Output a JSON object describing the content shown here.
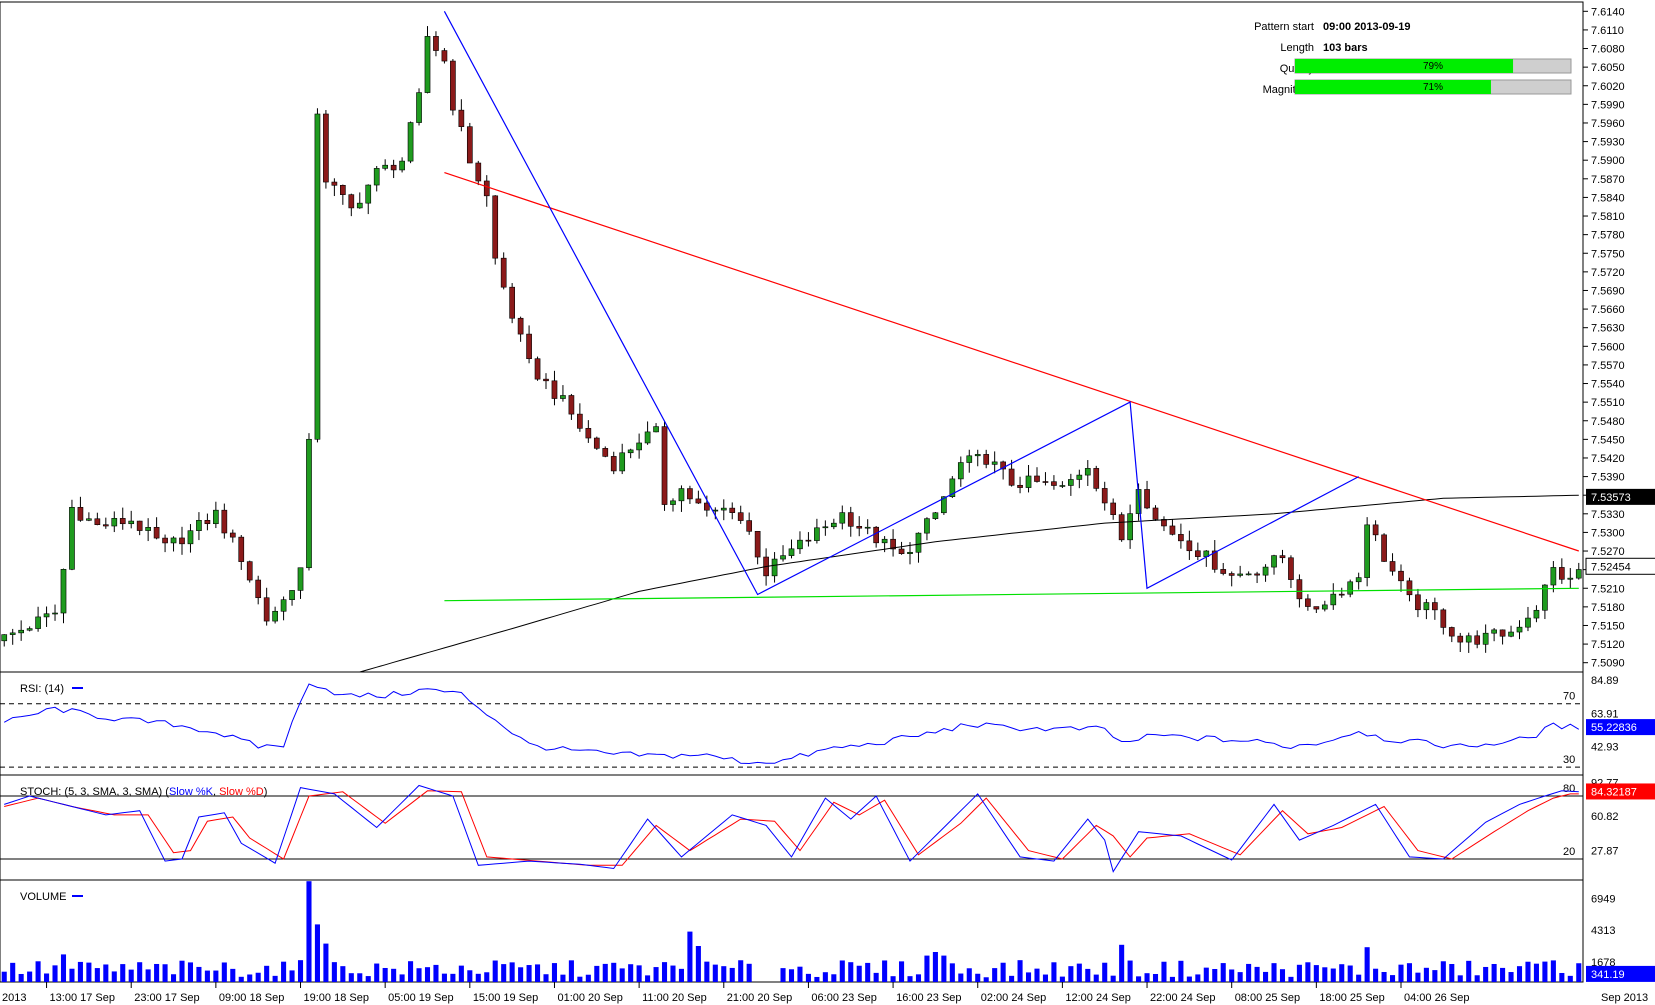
{
  "info": {
    "pattern_start_label": "Pattern start",
    "pattern_start_value": "09:00 2013-09-19",
    "length_label": "Length",
    "length_value": "103 bars",
    "quality_label": "Quality",
    "quality_value": "79%",
    "quality_fraction": 0.79,
    "magnitude_label": "Magnitude",
    "magnitude_value": "71%",
    "magnitude_fraction": 0.71
  },
  "colors": {
    "bull": "#1f9b1f",
    "bear": "#8b1a1a",
    "resistance": "#ff0000",
    "support": "#00e000",
    "pattern": "#0000ff",
    "ma": "#000000",
    "rsi": "#0000ff",
    "stoch_k": "#0000ff",
    "stoch_d": "#ff0000",
    "volume": "#0000ff",
    "bar_fill": "#00ee00"
  },
  "chart_data": [
    {
      "type": "candlestick",
      "name": "price",
      "y_ticks": [
        "7.6140",
        "7.6110",
        "7.6080",
        "7.6050",
        "7.6020",
        "7.5990",
        "7.5960",
        "7.5930",
        "7.5900",
        "7.5870",
        "7.5840",
        "7.5810",
        "7.5780",
        "7.5750",
        "7.5720",
        "7.5690",
        "7.5660",
        "7.5630",
        "7.5600",
        "7.5570",
        "7.5540",
        "7.5510",
        "7.5480",
        "7.5450",
        "7.5420",
        "7.5390",
        "7.5360",
        "7.5330",
        "7.5300",
        "7.5270",
        "7.5240",
        "7.5210",
        "7.5180",
        "7.5150",
        "7.5120",
        "7.5090"
      ],
      "hidden_tick_labels": [
        "7.5360",
        "7.5240"
      ],
      "ylim": [
        7.5075,
        7.6155
      ],
      "x_labels": [
        "2013",
        "13:00 17 Sep",
        "23:00 17 Sep",
        "09:00 18 Sep",
        "19:00 18 Sep",
        "05:00 19 Sep",
        "15:00 19 Sep",
        "01:00 20 Sep",
        "11:00 20 Sep",
        "21:00 20 Sep",
        "06:00 23 Sep",
        "16:00 23 Sep",
        "02:00 24 Sep",
        "12:00 24 Sep",
        "22:00 24 Sep",
        "08:00 25 Sep",
        "18:00 25 Sep",
        "04:00 26 Sep",
        "Sep 2013"
      ],
      "close_segments": [
        [
          0,
          7.513
        ],
        [
          6,
          7.517
        ],
        [
          7,
          7.524
        ],
        [
          8,
          7.534
        ],
        [
          11,
          7.531
        ],
        [
          15,
          7.532
        ],
        [
          19,
          7.5275
        ],
        [
          22,
          7.53
        ],
        [
          25,
          7.533
        ],
        [
          28,
          7.526
        ],
        [
          31,
          7.516
        ],
        [
          33,
          7.519
        ],
        [
          35,
          7.524
        ],
        [
          36,
          7.544
        ],
        [
          37,
          7.598
        ],
        [
          38,
          7.587
        ],
        [
          41,
          7.582
        ],
        [
          44,
          7.588
        ],
        [
          47,
          7.59
        ],
        [
          49,
          7.6
        ],
        [
          50,
          7.61
        ],
        [
          52,
          7.606
        ],
        [
          53,
          7.599
        ],
        [
          55,
          7.59
        ],
        [
          57,
          7.584
        ],
        [
          58,
          7.574
        ],
        [
          60,
          7.565
        ],
        [
          62,
          7.557
        ],
        [
          66,
          7.551
        ],
        [
          69,
          7.545
        ],
        [
          72,
          7.541
        ],
        [
          75,
          7.545
        ],
        [
          77,
          7.546
        ],
        [
          78,
          7.535
        ],
        [
          80,
          7.537
        ],
        [
          83,
          7.533
        ],
        [
          86,
          7.534
        ],
        [
          88,
          7.53
        ],
        [
          90,
          7.5235
        ],
        [
          92,
          7.526
        ],
        [
          96,
          7.53
        ],
        [
          99,
          7.533
        ],
        [
          103,
          7.529
        ],
        [
          106,
          7.526
        ],
        [
          110,
          7.533
        ],
        [
          113,
          7.541
        ],
        [
          116,
          7.542
        ],
        [
          119,
          7.538
        ],
        [
          122,
          7.538
        ],
        [
          125,
          7.537
        ],
        [
          128,
          7.541
        ],
        [
          130,
          7.535
        ],
        [
          132,
          7.529
        ],
        [
          134,
          7.538
        ],
        [
          136,
          7.532
        ],
        [
          139,
          7.529
        ],
        [
          142,
          7.526
        ],
        [
          145,
          7.523
        ],
        [
          148,
          7.524
        ],
        [
          151,
          7.526
        ],
        [
          154,
          7.517
        ],
        [
          157,
          7.52
        ],
        [
          160,
          7.523
        ],
        [
          161,
          7.532
        ],
        [
          163,
          7.526
        ],
        [
          166,
          7.519
        ],
        [
          169,
          7.517
        ],
        [
          172,
          7.5125
        ],
        [
          175,
          7.513
        ],
        [
          178,
          7.514
        ],
        [
          181,
          7.518
        ],
        [
          183,
          7.524
        ],
        [
          185,
          7.522
        ],
        [
          186,
          7.524
        ]
      ],
      "bars": 187,
      "moving_average_points": [
        [
          42,
          7.5075
        ],
        [
          60,
          7.5145
        ],
        [
          75,
          7.5205
        ],
        [
          90,
          7.5245
        ],
        [
          110,
          7.5285
        ],
        [
          130,
          7.5315
        ],
        [
          150,
          7.533
        ],
        [
          170,
          7.5355
        ],
        [
          186,
          7.536
        ]
      ],
      "resistance_line": [
        [
          52,
          7.588
        ],
        [
          186,
          7.527
        ]
      ],
      "support_line": [
        [
          52,
          7.519
        ],
        [
          186,
          7.521
        ]
      ],
      "pattern_path": [
        [
          52,
          7.614
        ],
        [
          89,
          7.52
        ],
        [
          133,
          7.551
        ],
        [
          135,
          7.521
        ],
        [
          160,
          7.539
        ]
      ],
      "last_price": "7.52454",
      "last_price_value": 7.52454,
      "ma_value": "7.53573",
      "ma_tag_value": 7.53573
    },
    {
      "type": "line",
      "name": "RSI",
      "title": "RSI: (14)",
      "levels": [
        70,
        30
      ],
      "level_labels": [
        "70",
        "30"
      ],
      "ylim": [
        25,
        90
      ],
      "ticks": [
        "84.89",
        "63.91",
        "42.93"
      ],
      "last_value": "55.22836",
      "last": 55.23,
      "anchors": [
        [
          0,
          58
        ],
        [
          6,
          67
        ],
        [
          10,
          63
        ],
        [
          14,
          60
        ],
        [
          20,
          57
        ],
        [
          25,
          52
        ],
        [
          30,
          43
        ],
        [
          33,
          44
        ],
        [
          36,
          84
        ],
        [
          40,
          75
        ],
        [
          45,
          75
        ],
        [
          50,
          79
        ],
        [
          54,
          76
        ],
        [
          58,
          60
        ],
        [
          62,
          44
        ],
        [
          66,
          41
        ],
        [
          72,
          38
        ],
        [
          78,
          37
        ],
        [
          82,
          38
        ],
        [
          88,
          33
        ],
        [
          92,
          34
        ],
        [
          98,
          42
        ],
        [
          102,
          44
        ],
        [
          108,
          50
        ],
        [
          110,
          52
        ],
        [
          114,
          57
        ],
        [
          118,
          55
        ],
        [
          124,
          54
        ],
        [
          130,
          54
        ],
        [
          132,
          45
        ],
        [
          136,
          50
        ],
        [
          142,
          48
        ],
        [
          148,
          46
        ],
        [
          152,
          43
        ],
        [
          156,
          46
        ],
        [
          160,
          53
        ],
        [
          163,
          48
        ],
        [
          168,
          45
        ],
        [
          172,
          43
        ],
        [
          176,
          45
        ],
        [
          180,
          48
        ],
        [
          183,
          56
        ],
        [
          186,
          55
        ]
      ]
    },
    {
      "type": "line",
      "name": "STOCH",
      "title_prefix": "STOCH: (5, 3, SMA, 3, SMA) (",
      "k_label": "Slow %K",
      "sep": ", ",
      "d_label": "Slow %D",
      "title_suffix": ")",
      "levels": [
        80,
        20
      ],
      "level_labels": [
        "80",
        "20"
      ],
      "ylim": [
        0,
        100
      ],
      "ticks": [
        "92.77",
        "60.82",
        "27.87"
      ],
      "last_value": "84.32187",
      "k_last": 84.32,
      "k_anchors": [
        [
          0,
          72
        ],
        [
          3,
          80
        ],
        [
          7,
          72
        ],
        [
          12,
          62
        ],
        [
          16,
          66
        ],
        [
          19,
          18
        ],
        [
          21,
          20
        ],
        [
          23,
          60
        ],
        [
          26,
          64
        ],
        [
          28,
          35
        ],
        [
          32,
          16
        ],
        [
          35,
          88
        ],
        [
          39,
          82
        ],
        [
          44,
          50
        ],
        [
          49,
          90
        ],
        [
          53,
          80
        ],
        [
          56,
          14
        ],
        [
          62,
          18
        ],
        [
          68,
          15
        ],
        [
          72,
          11
        ],
        [
          76,
          58
        ],
        [
          80,
          22
        ],
        [
          86,
          62
        ],
        [
          90,
          52
        ],
        [
          93,
          22
        ],
        [
          97,
          78
        ],
        [
          100,
          58
        ],
        [
          103,
          80
        ],
        [
          107,
          18
        ],
        [
          112,
          58
        ],
        [
          115,
          82
        ],
        [
          120,
          22
        ],
        [
          124,
          18
        ],
        [
          128,
          58
        ],
        [
          130,
          38
        ],
        [
          131,
          8
        ],
        [
          134,
          46
        ],
        [
          139,
          42
        ],
        [
          145,
          19
        ],
        [
          150,
          72
        ],
        [
          153,
          38
        ],
        [
          157,
          52
        ],
        [
          162,
          72
        ],
        [
          166,
          22
        ],
        [
          170,
          20
        ],
        [
          175,
          55
        ],
        [
          179,
          72
        ],
        [
          182,
          80
        ],
        [
          184,
          85
        ],
        [
          186,
          84
        ]
      ],
      "d_anchors": [
        [
          0,
          70
        ],
        [
          4,
          78
        ],
        [
          8,
          70
        ],
        [
          13,
          62
        ],
        [
          17,
          62
        ],
        [
          20,
          26
        ],
        [
          22,
          28
        ],
        [
          24,
          56
        ],
        [
          27,
          60
        ],
        [
          29,
          40
        ],
        [
          33,
          20
        ],
        [
          36,
          80
        ],
        [
          40,
          84
        ],
        [
          45,
          54
        ],
        [
          50,
          85
        ],
        [
          54,
          84
        ],
        [
          57,
          22
        ],
        [
          63,
          18
        ],
        [
          69,
          14
        ],
        [
          73,
          14
        ],
        [
          77,
          52
        ],
        [
          81,
          28
        ],
        [
          87,
          58
        ],
        [
          91,
          56
        ],
        [
          94,
          28
        ],
        [
          98,
          74
        ],
        [
          101,
          62
        ],
        [
          104,
          76
        ],
        [
          108,
          24
        ],
        [
          113,
          54
        ],
        [
          116,
          78
        ],
        [
          121,
          28
        ],
        [
          125,
          20
        ],
        [
          129,
          52
        ],
        [
          131,
          42
        ],
        [
          133,
          22
        ],
        [
          135,
          40
        ],
        [
          140,
          44
        ],
        [
          146,
          24
        ],
        [
          151,
          66
        ],
        [
          154,
          44
        ],
        [
          158,
          50
        ],
        [
          163,
          70
        ],
        [
          167,
          28
        ],
        [
          171,
          20
        ],
        [
          176,
          46
        ],
        [
          180,
          66
        ],
        [
          183,
          78
        ],
        [
          185,
          82
        ],
        [
          186,
          82
        ]
      ]
    },
    {
      "type": "bar",
      "name": "VOLUME",
      "title": "VOLUME",
      "ylim": [
        0,
        8500
      ],
      "ticks": [
        "6949",
        "4313",
        "1678"
      ],
      "last_value": "341.19",
      "last": 341.19,
      "spikes": [
        [
          7,
          2300
        ],
        [
          36,
          8400
        ],
        [
          37,
          4800
        ],
        [
          38,
          3200
        ],
        [
          81,
          4200
        ],
        [
          82,
          3000
        ],
        [
          109,
          2200
        ],
        [
          110,
          2500
        ],
        [
          111,
          2200
        ],
        [
          132,
          3100
        ],
        [
          161,
          2900
        ],
        [
          182,
          1700
        ],
        [
          183,
          1800
        ]
      ],
      "base": 1300
    }
  ]
}
